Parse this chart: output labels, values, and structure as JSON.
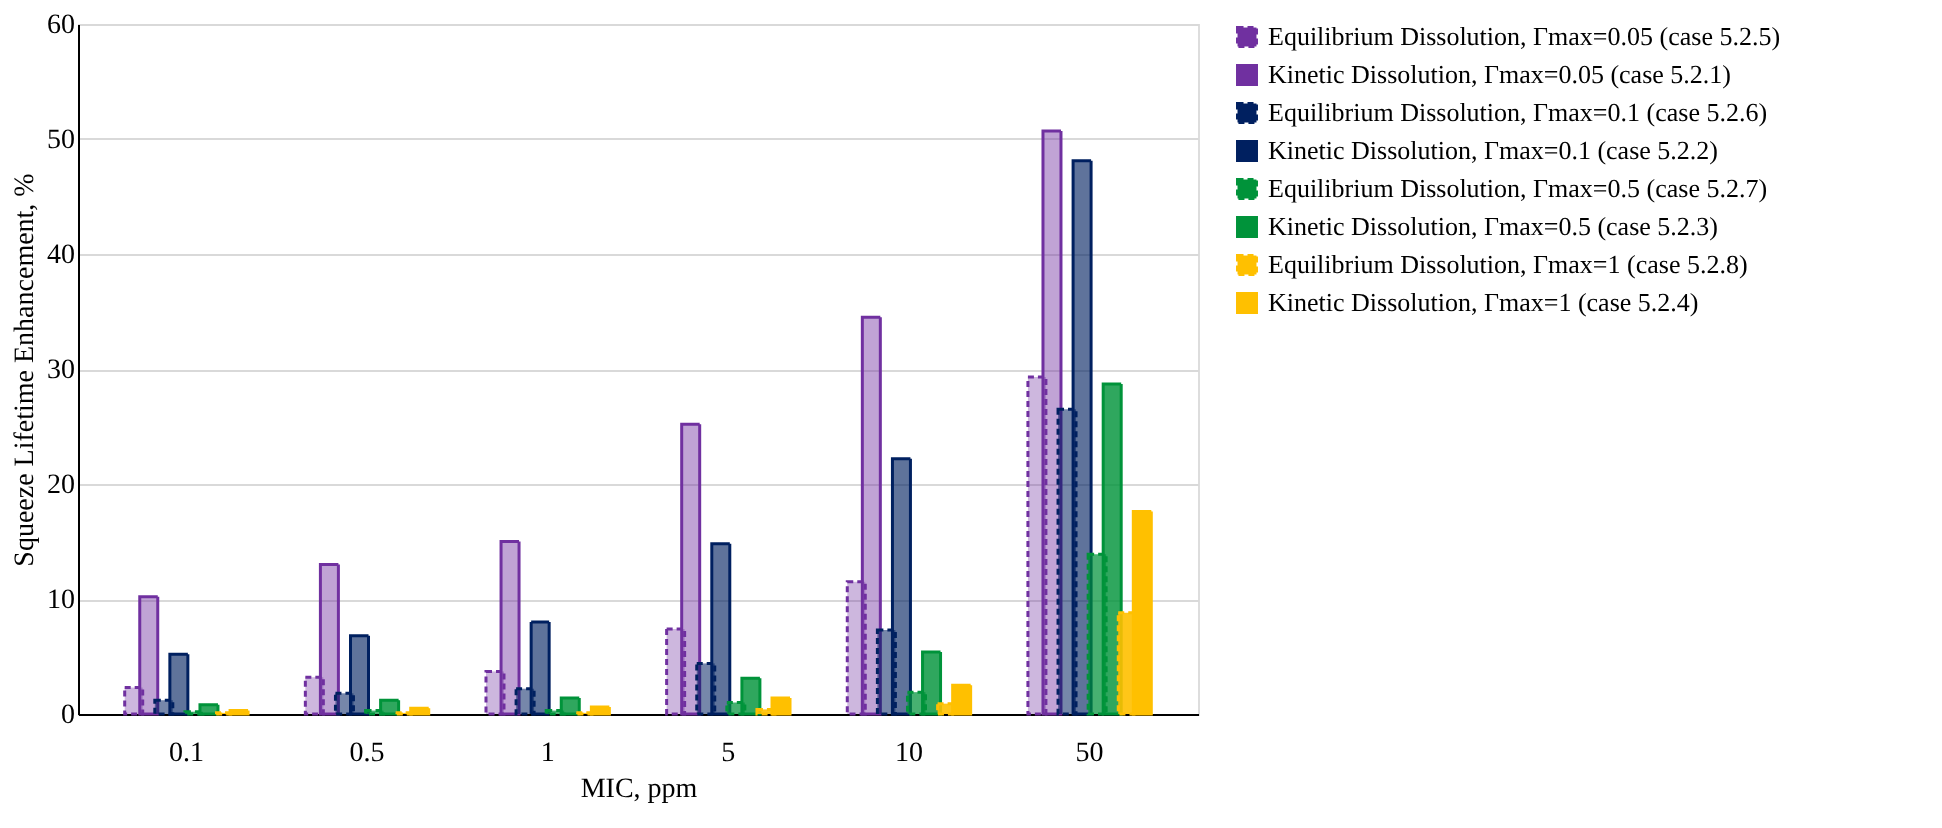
{
  "chart_data": {
    "type": "bar",
    "xlabel": "MIC, ppm",
    "ylabel": "Squeeze Lifetime Enhancement, %",
    "categories": [
      "0.1",
      "0.5",
      "1",
      "5",
      "10",
      "50"
    ],
    "ylim": [
      0,
      60
    ],
    "yticks": [
      0,
      10,
      20,
      30,
      40,
      50,
      60
    ],
    "grid": "y",
    "legend": "right",
    "series": [
      {
        "name": "Equilibrium Dissolution, Γmax=0.05 (case 5.2.5)",
        "color": "#7030a0",
        "line_style": "dashed",
        "values": [
          2.3,
          3.2,
          3.7,
          7.4,
          11.5,
          29.3
        ]
      },
      {
        "name": "Kinetic Dissolution, Γmax=0.05 (case 5.2.1)",
        "color": "#7030a0",
        "line_style": "solid",
        "values": [
          10.2,
          13.0,
          15.0,
          25.2,
          34.5,
          50.7
        ]
      },
      {
        "name": "Equilibrium Dissolution, Γmax=0.1 (case 5.2.6)",
        "color": "#002060",
        "line_style": "dashed",
        "values": [
          1.2,
          1.8,
          2.2,
          4.4,
          7.3,
          26.5
        ]
      },
      {
        "name": "Kinetic Dissolution, Γmax=0.1 (case 5.2.2)",
        "color": "#002060",
        "line_style": "solid",
        "values": [
          5.2,
          6.8,
          8.0,
          14.8,
          22.2,
          48.1
        ]
      },
      {
        "name": "Equilibrium Dissolution, Γmax=0.5 (case 5.2.7)",
        "color": "#00933a",
        "line_style": "dashed",
        "values": [
          0.2,
          0.3,
          0.3,
          1.0,
          1.9,
          13.9
        ]
      },
      {
        "name": "Kinetic Dissolution, Γmax=0.5 (case 5.2.3)",
        "color": "#00933a",
        "line_style": "solid",
        "values": [
          0.8,
          1.2,
          1.4,
          3.1,
          5.4,
          28.7
        ]
      },
      {
        "name": "Equilibrium Dissolution, Γmax=1 (case 5.2.8)",
        "color": "#ffc000",
        "line_style": "dashed",
        "values": [
          0.1,
          0.1,
          0.1,
          0.4,
          0.9,
          8.8
        ]
      },
      {
        "name": "Kinetic Dissolution, Γmax=1 (case 5.2.4)",
        "color": "#ffc000",
        "line_style": "solid",
        "values": [
          0.3,
          0.5,
          0.6,
          1.4,
          2.5,
          17.6
        ]
      }
    ]
  }
}
